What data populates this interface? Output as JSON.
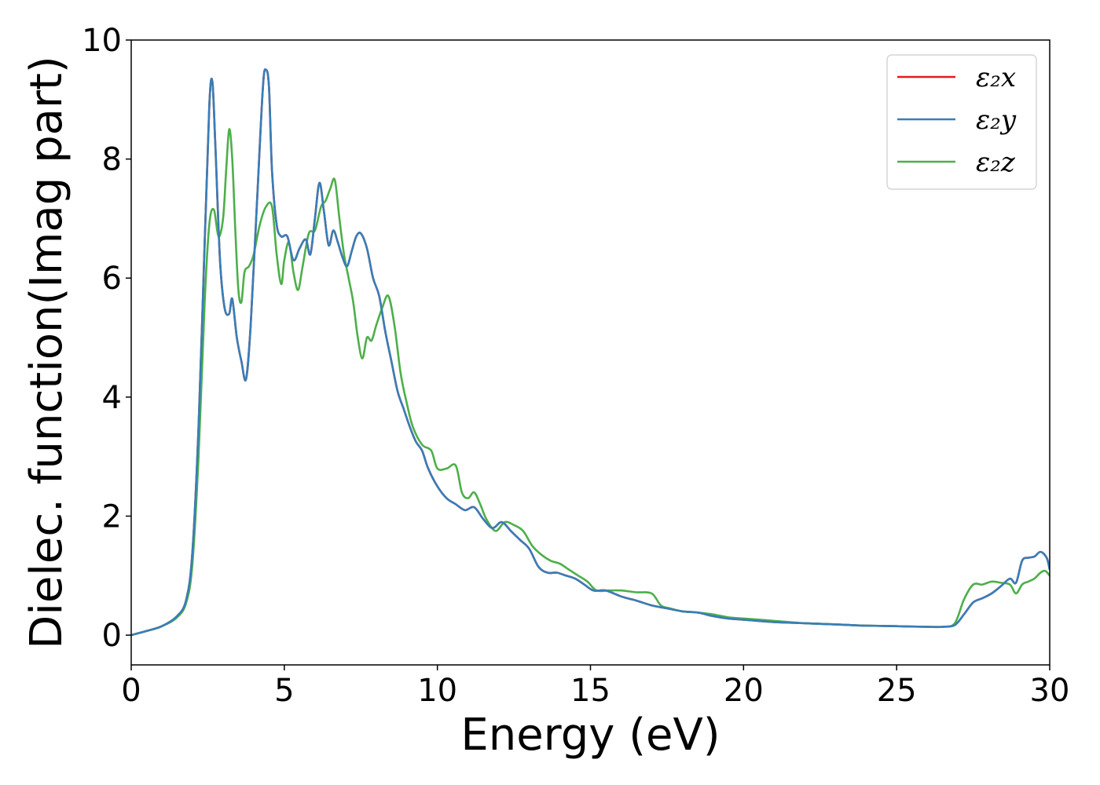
{
  "chart_data": {
    "type": "line",
    "title": "",
    "xlabel": "Energy (eV)",
    "ylabel": "Dielec. function(Imag part)",
    "xlim": [
      0,
      30
    ],
    "ylim": [
      -0.5,
      10
    ],
    "xticks": [
      0,
      5,
      10,
      15,
      20,
      25,
      30
    ],
    "yticks": [
      0,
      2,
      4,
      6,
      8,
      10
    ],
    "grid": false,
    "legend_position": "top-right",
    "series": [
      {
        "name": "ε₂x",
        "color": "#e41a1c",
        "x": [
          0,
          0.5,
          1,
          1.5,
          1.8,
          2.0,
          2.2,
          2.4,
          2.55,
          2.65,
          2.75,
          2.9,
          3.05,
          3.2,
          3.3,
          3.45,
          3.6,
          3.75,
          3.9,
          4.1,
          4.3,
          4.4,
          4.5,
          4.6,
          4.75,
          4.9,
          5.1,
          5.3,
          5.5,
          5.7,
          5.85,
          6.0,
          6.15,
          6.3,
          6.45,
          6.6,
          6.75,
          6.9,
          7.05,
          7.2,
          7.35,
          7.5,
          7.7,
          7.9,
          8.1,
          8.3,
          8.5,
          8.7,
          8.9,
          9.1,
          9.3,
          9.5,
          9.7,
          10,
          10.3,
          10.6,
          10.9,
          11.2,
          11.5,
          11.8,
          12.1,
          12.4,
          12.7,
          13.0,
          13.3,
          13.6,
          13.9,
          14.2,
          14.5,
          14.8,
          15.1,
          15.5,
          16.0,
          16.5,
          17.0,
          17.5,
          18.0,
          18.5,
          19.0,
          19.5,
          20,
          21,
          22,
          23,
          24,
          25,
          26,
          26.5,
          26.9,
          27.2,
          27.5,
          27.8,
          28.1,
          28.4,
          28.7,
          28.9,
          29.1,
          29.3,
          29.5,
          29.7,
          29.9,
          30
        ],
        "y": [
          0,
          0.07,
          0.15,
          0.32,
          0.6,
          1.4,
          3.5,
          6.6,
          8.9,
          9.3,
          8.2,
          6.3,
          5.5,
          5.4,
          5.65,
          5.0,
          4.6,
          4.3,
          5.2,
          7.2,
          9.2,
          9.5,
          9.2,
          7.8,
          6.9,
          6.7,
          6.7,
          6.3,
          6.5,
          6.65,
          6.4,
          7.0,
          7.6,
          7.1,
          6.55,
          6.8,
          6.6,
          6.35,
          6.2,
          6.45,
          6.7,
          6.75,
          6.5,
          6.0,
          5.7,
          5.1,
          4.6,
          4.1,
          3.8,
          3.5,
          3.25,
          3.1,
          2.8,
          2.5,
          2.3,
          2.2,
          2.1,
          2.15,
          1.95,
          1.8,
          1.9,
          1.75,
          1.6,
          1.45,
          1.15,
          1.05,
          1.05,
          1.0,
          0.95,
          0.85,
          0.75,
          0.75,
          0.65,
          0.58,
          0.5,
          0.45,
          0.4,
          0.38,
          0.32,
          0.28,
          0.26,
          0.22,
          0.2,
          0.18,
          0.16,
          0.15,
          0.14,
          0.14,
          0.17,
          0.35,
          0.55,
          0.62,
          0.7,
          0.82,
          0.95,
          0.88,
          1.25,
          1.3,
          1.32,
          1.4,
          1.3,
          1.1
        ]
      },
      {
        "name": "ε₂y",
        "color": "#377eb8",
        "x": [
          0,
          0.5,
          1,
          1.5,
          1.8,
          2.0,
          2.2,
          2.4,
          2.55,
          2.65,
          2.75,
          2.9,
          3.05,
          3.2,
          3.3,
          3.45,
          3.6,
          3.75,
          3.9,
          4.1,
          4.3,
          4.4,
          4.5,
          4.6,
          4.75,
          4.9,
          5.1,
          5.3,
          5.5,
          5.7,
          5.85,
          6.0,
          6.15,
          6.3,
          6.45,
          6.6,
          6.75,
          6.9,
          7.05,
          7.2,
          7.35,
          7.5,
          7.7,
          7.9,
          8.1,
          8.3,
          8.5,
          8.7,
          8.9,
          9.1,
          9.3,
          9.5,
          9.7,
          10,
          10.3,
          10.6,
          10.9,
          11.2,
          11.5,
          11.8,
          12.1,
          12.4,
          12.7,
          13.0,
          13.3,
          13.6,
          13.9,
          14.2,
          14.5,
          14.8,
          15.1,
          15.5,
          16.0,
          16.5,
          17.0,
          17.5,
          18.0,
          18.5,
          19.0,
          19.5,
          20,
          21,
          22,
          23,
          24,
          25,
          26,
          26.5,
          26.9,
          27.2,
          27.5,
          27.8,
          28.1,
          28.4,
          28.7,
          28.9,
          29.1,
          29.3,
          29.5,
          29.7,
          29.9,
          30
        ],
        "y": [
          0,
          0.07,
          0.15,
          0.32,
          0.6,
          1.4,
          3.5,
          6.6,
          8.9,
          9.3,
          8.2,
          6.3,
          5.5,
          5.4,
          5.65,
          5.0,
          4.6,
          4.3,
          5.2,
          7.2,
          9.2,
          9.5,
          9.2,
          7.8,
          6.9,
          6.7,
          6.7,
          6.3,
          6.5,
          6.65,
          6.4,
          7.0,
          7.6,
          7.1,
          6.55,
          6.8,
          6.6,
          6.35,
          6.2,
          6.45,
          6.7,
          6.75,
          6.5,
          6.0,
          5.7,
          5.1,
          4.6,
          4.1,
          3.8,
          3.5,
          3.25,
          3.1,
          2.8,
          2.5,
          2.3,
          2.2,
          2.1,
          2.15,
          1.95,
          1.8,
          1.9,
          1.75,
          1.6,
          1.45,
          1.15,
          1.05,
          1.05,
          1.0,
          0.95,
          0.85,
          0.75,
          0.75,
          0.65,
          0.58,
          0.5,
          0.45,
          0.4,
          0.38,
          0.32,
          0.28,
          0.26,
          0.22,
          0.2,
          0.18,
          0.16,
          0.15,
          0.14,
          0.14,
          0.17,
          0.35,
          0.55,
          0.62,
          0.7,
          0.82,
          0.95,
          0.88,
          1.25,
          1.3,
          1.32,
          1.4,
          1.3,
          1.1
        ]
      },
      {
        "name": "ε₂z",
        "color": "#4daf4a",
        "x": [
          0,
          0.5,
          1,
          1.5,
          1.8,
          2.0,
          2.2,
          2.4,
          2.55,
          2.7,
          2.85,
          3.0,
          3.1,
          3.2,
          3.3,
          3.4,
          3.5,
          3.6,
          3.7,
          3.85,
          4.0,
          4.2,
          4.4,
          4.6,
          4.75,
          4.9,
          5.0,
          5.15,
          5.3,
          5.45,
          5.6,
          5.8,
          6.0,
          6.2,
          6.35,
          6.5,
          6.65,
          6.8,
          6.95,
          7.1,
          7.25,
          7.4,
          7.55,
          7.7,
          7.85,
          8.0,
          8.2,
          8.4,
          8.6,
          8.8,
          9.0,
          9.2,
          9.5,
          9.8,
          10.0,
          10.3,
          10.6,
          10.8,
          11.0,
          11.2,
          11.4,
          11.6,
          11.9,
          12.2,
          12.5,
          12.8,
          13.1,
          13.4,
          13.7,
          14.0,
          14.3,
          14.6,
          14.9,
          15.2,
          15.6,
          16.0,
          16.5,
          17.0,
          17.3,
          17.6,
          18.0,
          18.5,
          19.0,
          19.5,
          20,
          21,
          22,
          23,
          24,
          25,
          26,
          26.5,
          26.9,
          27.2,
          27.5,
          27.8,
          28.1,
          28.4,
          28.7,
          28.9,
          29.1,
          29.3,
          29.5,
          29.7,
          29.85,
          30
        ],
        "y": [
          0,
          0.07,
          0.15,
          0.3,
          0.55,
          1.2,
          3.0,
          5.6,
          6.9,
          7.15,
          6.7,
          7.0,
          7.8,
          8.5,
          8.0,
          6.8,
          5.8,
          5.6,
          6.1,
          6.2,
          6.4,
          6.9,
          7.2,
          7.2,
          6.4,
          5.9,
          6.3,
          6.6,
          6.1,
          5.8,
          6.2,
          6.75,
          6.8,
          7.2,
          7.3,
          7.5,
          7.65,
          7.0,
          6.4,
          6.0,
          5.6,
          5.0,
          4.65,
          5.0,
          4.95,
          5.2,
          5.5,
          5.7,
          5.2,
          4.4,
          3.9,
          3.5,
          3.2,
          3.1,
          2.8,
          2.8,
          2.85,
          2.4,
          2.3,
          2.4,
          2.2,
          1.95,
          1.75,
          1.9,
          1.85,
          1.75,
          1.5,
          1.35,
          1.25,
          1.2,
          1.1,
          1.0,
          0.9,
          0.75,
          0.75,
          0.75,
          0.72,
          0.7,
          0.5,
          0.45,
          0.4,
          0.38,
          0.35,
          0.3,
          0.28,
          0.24,
          0.2,
          0.18,
          0.16,
          0.15,
          0.14,
          0.14,
          0.2,
          0.6,
          0.85,
          0.85,
          0.9,
          0.88,
          0.85,
          0.7,
          0.85,
          0.9,
          0.95,
          1.05,
          1.08,
          1.0
        ]
      }
    ]
  }
}
